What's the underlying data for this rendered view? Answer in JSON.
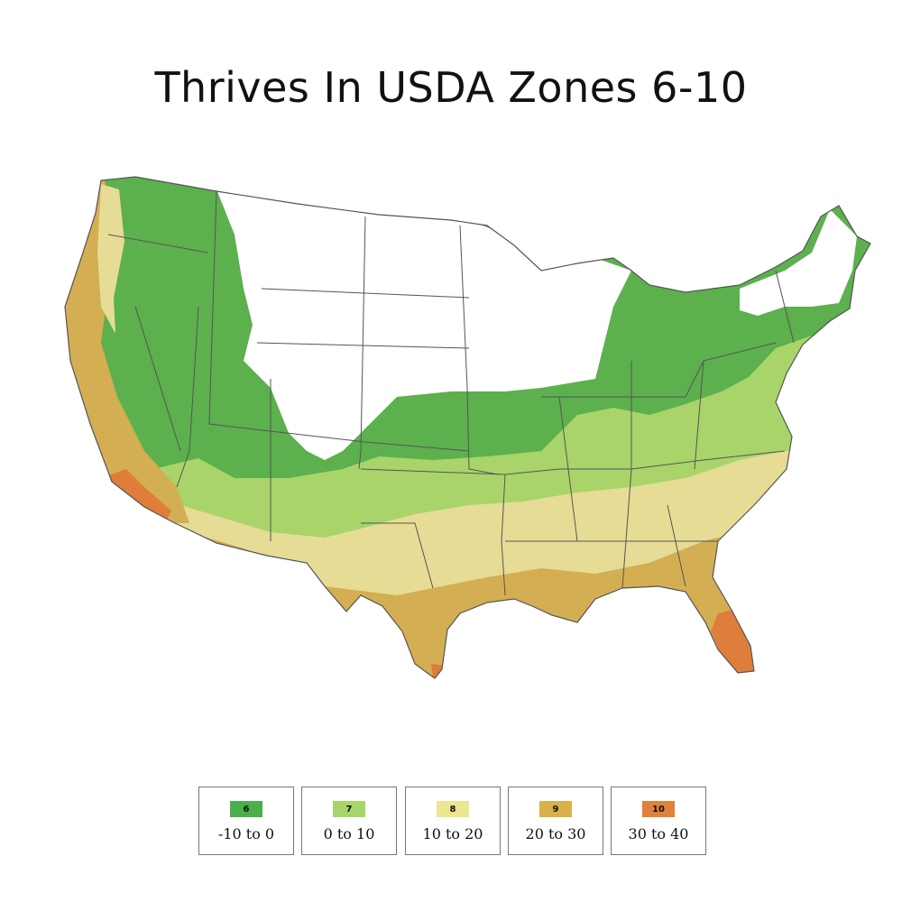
{
  "title": "Thrives In USDA Zones 6-10",
  "map_colors": {
    "zone_6": "#5cb04e",
    "zone_7": "#a8d46a",
    "zone_8": "#e6dc95",
    "zone_9": "#d4ae52",
    "zone_10": "#df7d3a",
    "colder": "#ffffff",
    "borders": "#555555"
  },
  "legend": [
    {
      "zone": "6",
      "range": "-10 to 0",
      "color": "#4cae4c"
    },
    {
      "zone": "7",
      "range": "0 to 10",
      "color": "#a6d66a"
    },
    {
      "zone": "8",
      "range": "10 to 20",
      "color": "#ece692"
    },
    {
      "zone": "9",
      "range": "20 to 30",
      "color": "#d9b04a"
    },
    {
      "zone": "10",
      "range": "30 to 40",
      "color": "#e0823a"
    }
  ]
}
